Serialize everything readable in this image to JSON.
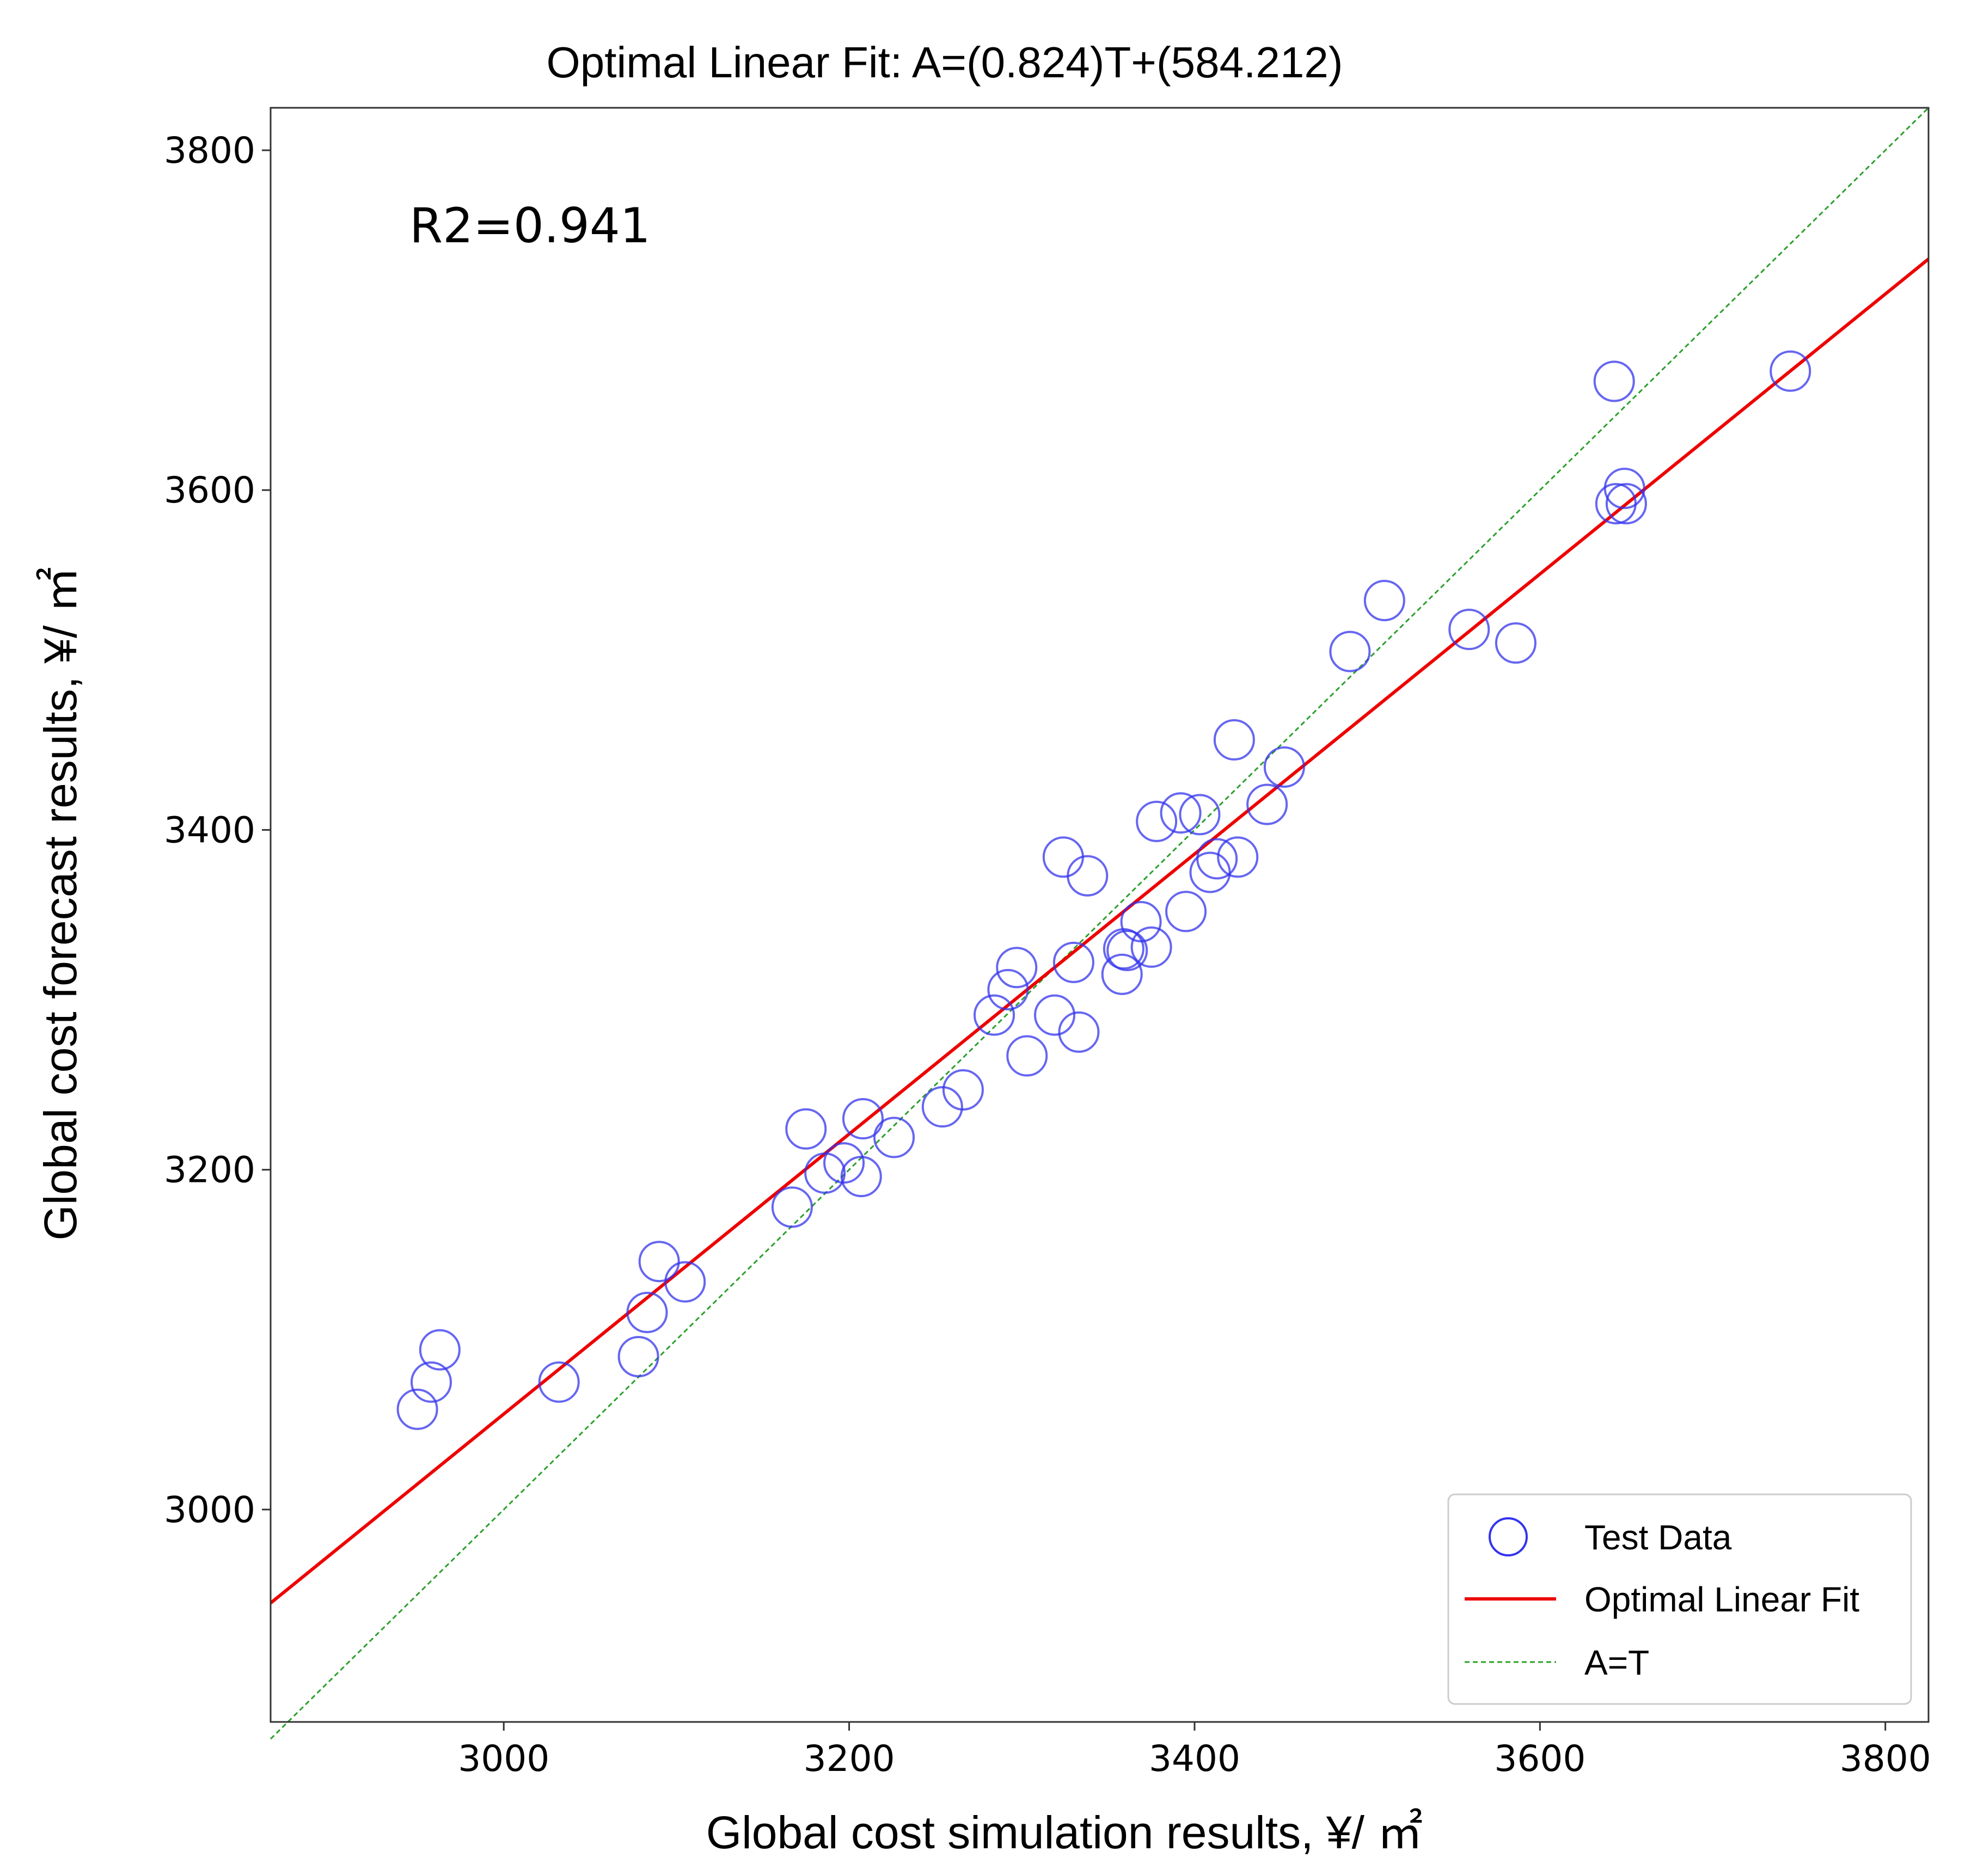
{
  "chart_data": {
    "type": "scatter",
    "title": "Optimal Linear Fit: A=(0.824)T+(584.212)",
    "xlabel": "Global cost simulation results, ¥/ ㎡",
    "ylabel": "Global cost forecast results, ¥/ ㎡",
    "xlim": [
      2865,
      3825
    ],
    "ylim": [
      2875,
      3825
    ],
    "xticks": [
      3000,
      3200,
      3400,
      3600,
      3800
    ],
    "yticks": [
      3000,
      3200,
      3400,
      3600,
      3800
    ],
    "annotation": "R2=0.941",
    "legend_position": "lower-right",
    "grid": false,
    "colors": {
      "points": "#3333ee",
      "fit": "#ee0000",
      "identity": "#2ca02c"
    },
    "series": [
      {
        "name": "Test Data",
        "kind": "scatter",
        "points": [
          [
            2950,
            3059
          ],
          [
            2958,
            3075
          ],
          [
            2963,
            3094
          ],
          [
            3032,
            3075
          ],
          [
            3078,
            3090
          ],
          [
            3083,
            3116
          ],
          [
            3090,
            3146
          ],
          [
            3105,
            3134
          ],
          [
            3167,
            3178
          ],
          [
            3175,
            3224
          ],
          [
            3186,
            3198
          ],
          [
            3197,
            3204
          ],
          [
            3207,
            3196
          ],
          [
            3208,
            3230
          ],
          [
            3226,
            3219
          ],
          [
            3254,
            3237
          ],
          [
            3266,
            3247
          ],
          [
            3284,
            3291
          ],
          [
            3292,
            3306
          ],
          [
            3297,
            3319
          ],
          [
            3303,
            3267
          ],
          [
            3319,
            3291
          ],
          [
            3324,
            3384
          ],
          [
            3330,
            3322
          ],
          [
            3333,
            3281
          ],
          [
            3338,
            3373
          ],
          [
            3358,
            3315
          ],
          [
            3359,
            3330
          ],
          [
            3361,
            3329
          ],
          [
            3369,
            3346
          ],
          [
            3375,
            3331
          ],
          [
            3378,
            3405
          ],
          [
            3392,
            3410
          ],
          [
            3395,
            3352
          ],
          [
            3403,
            3409
          ],
          [
            3409,
            3375
          ],
          [
            3413,
            3383
          ],
          [
            3423,
            3453
          ],
          [
            3425,
            3384
          ],
          [
            3442,
            3415
          ],
          [
            3452,
            3437
          ],
          [
            3490,
            3505
          ],
          [
            3510,
            3535
          ],
          [
            3559,
            3518
          ],
          [
            3586,
            3510
          ],
          [
            3643,
            3664
          ],
          [
            3644,
            3592
          ],
          [
            3649,
            3601
          ],
          [
            3650,
            3592
          ],
          [
            3745,
            3670
          ]
        ]
      },
      {
        "name": "Optimal Linear Fit",
        "kind": "line",
        "slope": 0.824,
        "intercept": 584.212
      },
      {
        "name": "A=T",
        "kind": "line",
        "slope": 1,
        "intercept": 0
      }
    ]
  }
}
